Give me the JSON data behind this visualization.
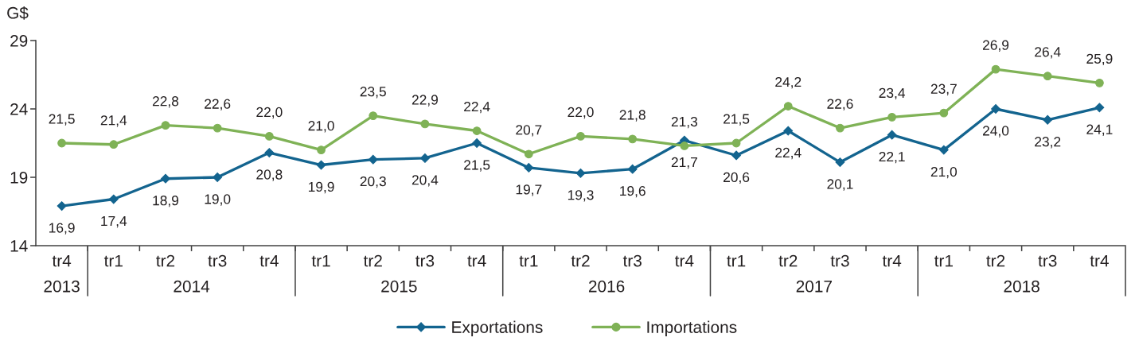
{
  "chart_data": {
    "type": "line",
    "ylabel": "G$",
    "categories": [
      "tr4",
      "tr1",
      "tr2",
      "tr3",
      "tr4",
      "tr1",
      "tr2",
      "tr3",
      "tr4",
      "tr1",
      "tr2",
      "tr3",
      "tr4",
      "tr1",
      "tr2",
      "tr3",
      "tr4",
      "tr1",
      "tr2",
      "tr3",
      "tr4"
    ],
    "annotations": [
      "2013",
      "2014",
      "2015",
      "2016",
      "2017",
      "2018"
    ],
    "ylim": [
      14,
      29
    ],
    "yticks": [
      14,
      19,
      24,
      29
    ],
    "legend": "bottom",
    "line_style": "solid",
    "series": [
      {
        "name": "Exportations",
        "color": "#13648f",
        "marker": "diamond",
        "values": [
          16.9,
          17.4,
          18.9,
          19.0,
          20.8,
          19.9,
          20.3,
          20.4,
          21.5,
          19.7,
          19.3,
          19.6,
          21.7,
          20.6,
          22.4,
          20.1,
          22.1,
          21.0,
          24.0,
          23.2,
          24.1
        ],
        "value_labels": [
          "16,9",
          "17,4",
          "18,9",
          "19,0",
          "20,8",
          "19,9",
          "20,3",
          "20,4",
          "21,5",
          "19,7",
          "19,3",
          "19,6",
          "21,7",
          "20,6",
          "22,4",
          "20,1",
          "22,1",
          "21,0",
          "24,0",
          "23,2",
          "24,1"
        ]
      },
      {
        "name": "Importations",
        "color": "#7fb256",
        "marker": "circle",
        "values": [
          21.5,
          21.4,
          22.8,
          22.6,
          22.0,
          21.0,
          23.5,
          22.9,
          22.4,
          20.7,
          22.0,
          21.8,
          21.3,
          21.5,
          24.2,
          22.6,
          23.4,
          23.7,
          26.9,
          26.4,
          25.9
        ],
        "value_labels": [
          "21,5",
          "21,4",
          "22,8",
          "22,6",
          "22,0",
          "21,0",
          "23,5",
          "22,9",
          "22,4",
          "20,7",
          "22,0",
          "21,8",
          "21,3",
          "21,5",
          "24,2",
          "22,6",
          "23,4",
          "23,7",
          "26,9",
          "26,4",
          "25,9"
        ]
      }
    ]
  }
}
